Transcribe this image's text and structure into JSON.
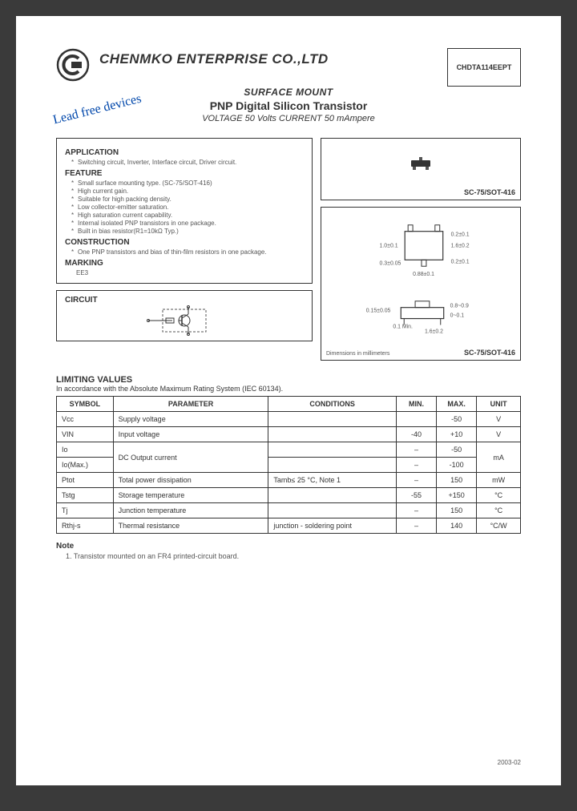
{
  "company": "CHENMKO ENTERPRISE CO.,LTD",
  "part_number": "CHDTA114EEPT",
  "header": {
    "surface_mount": "SURFACE MOUNT",
    "product": "PNP Digital Silicon Transistor",
    "specs": "VOLTAGE  50 Volts   CURRENT  50 mAmpere"
  },
  "lead_free": "Lead free devices",
  "application": {
    "title": "APPLICATION",
    "items": [
      "Switching circuit, Inverter, Interface circuit, Driver circuit."
    ]
  },
  "feature": {
    "title": "FEATURE",
    "items": [
      "Small surface mounting type. (SC-75/SOT-416)",
      "High current gain.",
      "Suitable for high packing density.",
      "Low collector-emitter saturation.",
      "High saturation current capability.",
      "Internal isolated PNP transistors in one package.",
      "Built in bias resistor(R1=10kΩ Typ.)"
    ]
  },
  "construction": {
    "title": "CONSTRUCTION",
    "items": [
      "One PNP transistors and bias of thin-film resistors in one package."
    ]
  },
  "marking": {
    "title": "MARKING",
    "value": "EE3"
  },
  "package_label": "SC-75/SOT-416",
  "dim_caption": "Dimensions in millimeters",
  "circuit_title": "CIRCUIT",
  "limiting": {
    "title": "LIMITING VALUES",
    "subtitle": "In accordance with the Absolute Maximum Rating System (IEC 60134).",
    "headers": [
      "SYMBOL",
      "PARAMETER",
      "CONDITIONS",
      "MIN.",
      "MAX.",
      "UNIT"
    ],
    "rows": [
      {
        "sym": "Vcc",
        "param": "Supply voltage",
        "cond": "",
        "min": "",
        "max": "-50",
        "unit": "V",
        "rowspan_param": 1,
        "rowspan_unit": 1
      },
      {
        "sym": "VIN",
        "param": "Input voltage",
        "cond": "",
        "min": "-40",
        "max": "+10",
        "unit": "V",
        "rowspan_param": 1,
        "rowspan_unit": 1
      },
      {
        "sym": "Io",
        "param": "DC Output current",
        "cond": "",
        "min": "–",
        "max": "-50",
        "unit": "mA",
        "rowspan_param": 2,
        "rowspan_unit": 2
      },
      {
        "sym": "Io(Max.)",
        "param": null,
        "cond": "",
        "min": "–",
        "max": "-100",
        "unit": null
      },
      {
        "sym": "Ptot",
        "param": "Total power dissipation",
        "cond": "Tamb≤ 25 °C, Note 1",
        "min": "–",
        "max": "150",
        "unit": "mW",
        "rowspan_param": 1,
        "rowspan_unit": 1
      },
      {
        "sym": "Tstg",
        "param": "Storage temperature",
        "cond": "",
        "min": "-55",
        "max": "+150",
        "unit": "°C",
        "rowspan_param": 1,
        "rowspan_unit": 1
      },
      {
        "sym": "Tj",
        "param": "Junction temperature",
        "cond": "",
        "min": "–",
        "max": "150",
        "unit": "°C",
        "rowspan_param": 1,
        "rowspan_unit": 1
      },
      {
        "sym": "Rthj-s",
        "param": "Thermal resistance",
        "cond": "junction - soldering point",
        "min": "–",
        "max": "140",
        "unit": "°C/W",
        "rowspan_param": 1,
        "rowspan_unit": 1
      }
    ]
  },
  "note": {
    "title": "Note",
    "text": "1.  Transistor mounted on an FR4 printed-circuit board."
  },
  "date_code": "2003-02",
  "colors": {
    "border": "#333333",
    "lead_free": "#0047ab"
  }
}
